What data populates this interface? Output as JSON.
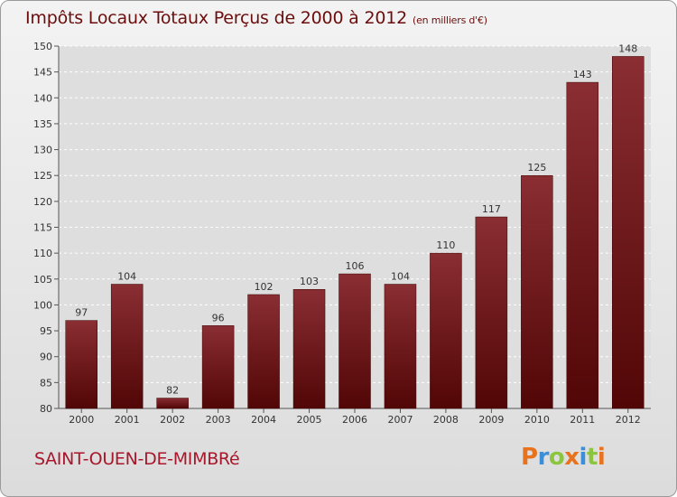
{
  "title": {
    "main": "Impôts Locaux Totaux Perçus de 2000 à 2012",
    "unit": "(en milliers d'€)"
  },
  "town": "SAINT-OUEN-DE-MIMBRé",
  "logo": {
    "letters": [
      "P",
      "r",
      "o",
      "x",
      "i",
      "t",
      "i"
    ],
    "colors": [
      "#e8731f",
      "#3b8ed8",
      "#8cc63f",
      "#e8731f",
      "#3b8ed8",
      "#8cc63f",
      "#e8731f"
    ]
  },
  "colors": {
    "bar_top": "#8a2e33",
    "bar_bottom": "#520606",
    "axis_text": "#333333",
    "grid": "#ffffff"
  },
  "chart_data": {
    "type": "bar",
    "categories": [
      "2000",
      "2001",
      "2002",
      "2003",
      "2004",
      "2005",
      "2006",
      "2007",
      "2008",
      "2009",
      "2010",
      "2011",
      "2012"
    ],
    "values": [
      97,
      104,
      82,
      96,
      102,
      103,
      106,
      104,
      110,
      117,
      125,
      143,
      148
    ],
    "ylim": [
      80,
      150
    ],
    "yticks": [
      80,
      85,
      90,
      95,
      100,
      105,
      110,
      115,
      120,
      125,
      130,
      135,
      140,
      145,
      150
    ],
    "grid": true,
    "data_labels": true
  }
}
